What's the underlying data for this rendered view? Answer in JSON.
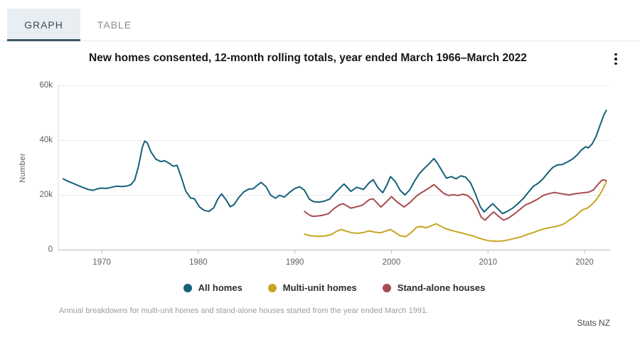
{
  "tabs": [
    {
      "label": "GRAPH",
      "active": true
    },
    {
      "label": "TABLE",
      "active": false
    }
  ],
  "header": {
    "title": "New homes consented, 12-month rolling totals, year ended March 1966–March 2022"
  },
  "icons": {
    "menu": "kebab-vertical-dots"
  },
  "footnote": "Annual breakdowns for multi-unit homes and stand-alone houses started from the year ended March 1991.",
  "attribution": "Stats NZ",
  "chart_data": {
    "type": "line",
    "title": "New homes consented, 12-month rolling totals, year ended March 1966–March 2022",
    "xlabel": "",
    "ylabel": "Number",
    "xlim": [
      1965.5,
      2022.65
    ],
    "ylim": [
      0,
      60000
    ],
    "grid": "horizontal",
    "legend_position": "bottom",
    "x_ticks": [
      {
        "value": 1970,
        "label": "1970"
      },
      {
        "value": 1980,
        "label": "1980"
      },
      {
        "value": 1990,
        "label": "1990"
      },
      {
        "value": 2000,
        "label": "2000"
      },
      {
        "value": 2010,
        "label": "2010"
      },
      {
        "value": 2020,
        "label": "2020"
      }
    ],
    "y_ticks": [
      {
        "value": 0,
        "label": "0"
      },
      {
        "value": 20000,
        "label": "20k"
      },
      {
        "value": 40000,
        "label": "40k"
      },
      {
        "value": 60000,
        "label": "60k"
      }
    ],
    "series": [
      {
        "name": "All homes",
        "color": "#15607a",
        "points": [
          [
            1966.0,
            26000
          ],
          [
            1966.5,
            25100
          ],
          [
            1967.0,
            24400
          ],
          [
            1967.5,
            23600
          ],
          [
            1968.0,
            22900
          ],
          [
            1968.6,
            22100
          ],
          [
            1969.1,
            21800
          ],
          [
            1969.6,
            22400
          ],
          [
            1970.0,
            22600
          ],
          [
            1970.5,
            22500
          ],
          [
            1971.0,
            22900
          ],
          [
            1971.5,
            23300
          ],
          [
            1972.0,
            23200
          ],
          [
            1972.5,
            23300
          ],
          [
            1973.0,
            23800
          ],
          [
            1973.4,
            25500
          ],
          [
            1973.8,
            30500
          ],
          [
            1974.2,
            37500
          ],
          [
            1974.45,
            39800
          ],
          [
            1974.7,
            39200
          ],
          [
            1975.1,
            35800
          ],
          [
            1975.6,
            33200
          ],
          [
            1976.1,
            32300
          ],
          [
            1976.5,
            32600
          ],
          [
            1977.0,
            31600
          ],
          [
            1977.4,
            30600
          ],
          [
            1977.8,
            30900
          ],
          [
            1978.2,
            27000
          ],
          [
            1978.7,
            21500
          ],
          [
            1979.2,
            19000
          ],
          [
            1979.6,
            18700
          ],
          [
            1980.1,
            15800
          ],
          [
            1980.6,
            14500
          ],
          [
            1981.1,
            14100
          ],
          [
            1981.6,
            15400
          ],
          [
            1982.0,
            18500
          ],
          [
            1982.4,
            20500
          ],
          [
            1982.9,
            18200
          ],
          [
            1983.3,
            15800
          ],
          [
            1983.7,
            16600
          ],
          [
            1984.2,
            19200
          ],
          [
            1984.7,
            21200
          ],
          [
            1985.2,
            22200
          ],
          [
            1985.7,
            22400
          ],
          [
            1986.1,
            23600
          ],
          [
            1986.5,
            24700
          ],
          [
            1987.0,
            23200
          ],
          [
            1987.5,
            20000
          ],
          [
            1988.0,
            18900
          ],
          [
            1988.4,
            20000
          ],
          [
            1988.9,
            19300
          ],
          [
            1989.5,
            21200
          ],
          [
            1990.0,
            22500
          ],
          [
            1990.5,
            23100
          ],
          [
            1991.0,
            21800
          ],
          [
            1991.5,
            18600
          ],
          [
            1991.9,
            17700
          ],
          [
            1992.5,
            17500
          ],
          [
            1993.0,
            17800
          ],
          [
            1993.6,
            18600
          ],
          [
            1994.1,
            20600
          ],
          [
            1994.7,
            22800
          ],
          [
            1995.1,
            24100
          ],
          [
            1995.8,
            21400
          ],
          [
            1996.4,
            22900
          ],
          [
            1997.1,
            22100
          ],
          [
            1997.7,
            24600
          ],
          [
            1998.1,
            25700
          ],
          [
            1998.6,
            22800
          ],
          [
            1999.1,
            20900
          ],
          [
            1999.5,
            23500
          ],
          [
            1999.9,
            26800
          ],
          [
            2000.4,
            25000
          ],
          [
            2000.9,
            21800
          ],
          [
            2001.4,
            20100
          ],
          [
            2001.9,
            22000
          ],
          [
            2002.4,
            25200
          ],
          [
            2002.9,
            27900
          ],
          [
            2003.4,
            29800
          ],
          [
            2003.9,
            31500
          ],
          [
            2004.4,
            33400
          ],
          [
            2004.8,
            31500
          ],
          [
            2005.3,
            28500
          ],
          [
            2005.7,
            26200
          ],
          [
            2006.2,
            26800
          ],
          [
            2006.7,
            26000
          ],
          [
            2007.2,
            27100
          ],
          [
            2007.7,
            26600
          ],
          [
            2008.2,
            24500
          ],
          [
            2008.7,
            20500
          ],
          [
            2009.2,
            15800
          ],
          [
            2009.6,
            13900
          ],
          [
            2010.1,
            15700
          ],
          [
            2010.5,
            16900
          ],
          [
            2011.0,
            15100
          ],
          [
            2011.5,
            13300
          ],
          [
            2012.0,
            14100
          ],
          [
            2012.6,
            15400
          ],
          [
            2013.1,
            16900
          ],
          [
            2013.7,
            19000
          ],
          [
            2014.2,
            21200
          ],
          [
            2014.7,
            23300
          ],
          [
            2015.2,
            24400
          ],
          [
            2015.7,
            26000
          ],
          [
            2016.2,
            28200
          ],
          [
            2016.7,
            30100
          ],
          [
            2017.2,
            31100
          ],
          [
            2017.7,
            31200
          ],
          [
            2018.2,
            32100
          ],
          [
            2018.7,
            33100
          ],
          [
            2019.2,
            34600
          ],
          [
            2019.7,
            36600
          ],
          [
            2020.1,
            37700
          ],
          [
            2020.4,
            37300
          ],
          [
            2020.8,
            38800
          ],
          [
            2021.2,
            41500
          ],
          [
            2021.6,
            45500
          ],
          [
            2022.0,
            49300
          ],
          [
            2022.25,
            51000
          ]
        ]
      },
      {
        "name": "Multi-unit homes",
        "color": "#c8a521",
        "points": [
          [
            1991.0,
            5800
          ],
          [
            1991.5,
            5300
          ],
          [
            1992.0,
            5100
          ],
          [
            1992.6,
            5000
          ],
          [
            1993.2,
            5200
          ],
          [
            1993.8,
            5700
          ],
          [
            1994.3,
            6800
          ],
          [
            1994.8,
            7500
          ],
          [
            1995.3,
            6900
          ],
          [
            1995.9,
            6300
          ],
          [
            1996.5,
            6100
          ],
          [
            1997.1,
            6400
          ],
          [
            1997.7,
            7000
          ],
          [
            1998.3,
            6500
          ],
          [
            1998.9,
            6300
          ],
          [
            1999.4,
            6900
          ],
          [
            1999.9,
            7500
          ],
          [
            2000.4,
            6400
          ],
          [
            2000.9,
            5200
          ],
          [
            2001.5,
            4900
          ],
          [
            2002.0,
            6200
          ],
          [
            2002.6,
            8300
          ],
          [
            2003.1,
            8600
          ],
          [
            2003.6,
            8100
          ],
          [
            2004.1,
            8800
          ],
          [
            2004.6,
            9600
          ],
          [
            2005.1,
            8700
          ],
          [
            2005.6,
            7800
          ],
          [
            2006.1,
            7300
          ],
          [
            2006.7,
            6700
          ],
          [
            2007.3,
            6200
          ],
          [
            2007.9,
            5600
          ],
          [
            2008.5,
            5100
          ],
          [
            2009.1,
            4300
          ],
          [
            2009.7,
            3700
          ],
          [
            2010.3,
            3300
          ],
          [
            2010.9,
            3200
          ],
          [
            2011.5,
            3300
          ],
          [
            2012.1,
            3700
          ],
          [
            2012.7,
            4200
          ],
          [
            2013.4,
            4800
          ],
          [
            2014.0,
            5600
          ],
          [
            2014.7,
            6400
          ],
          [
            2015.3,
            7200
          ],
          [
            2016.0,
            7900
          ],
          [
            2016.7,
            8400
          ],
          [
            2017.3,
            8800
          ],
          [
            2017.9,
            9600
          ],
          [
            2018.4,
            10900
          ],
          [
            2019.1,
            12500
          ],
          [
            2019.6,
            14200
          ],
          [
            2020.0,
            15000
          ],
          [
            2020.3,
            15300
          ],
          [
            2020.7,
            16400
          ],
          [
            2021.1,
            17900
          ],
          [
            2021.5,
            19800
          ],
          [
            2021.9,
            22200
          ],
          [
            2022.25,
            24800
          ]
        ]
      },
      {
        "name": "Stand-alone houses",
        "color": "#a84c50",
        "points": [
          [
            1991.0,
            14100
          ],
          [
            1991.4,
            13000
          ],
          [
            1991.8,
            12300
          ],
          [
            1992.3,
            12400
          ],
          [
            1992.9,
            12700
          ],
          [
            1993.5,
            13300
          ],
          [
            1994.0,
            15000
          ],
          [
            1994.6,
            16500
          ],
          [
            1995.0,
            16900
          ],
          [
            1995.8,
            15300
          ],
          [
            1996.4,
            15800
          ],
          [
            1997.0,
            16400
          ],
          [
            1997.7,
            18400
          ],
          [
            1998.1,
            18700
          ],
          [
            1998.9,
            15700
          ],
          [
            1999.4,
            17300
          ],
          [
            2000.0,
            19500
          ],
          [
            2000.6,
            17500
          ],
          [
            2001.3,
            15700
          ],
          [
            2001.9,
            17300
          ],
          [
            2002.5,
            19400
          ],
          [
            2002.9,
            20500
          ],
          [
            2003.5,
            21800
          ],
          [
            2004.0,
            22900
          ],
          [
            2004.4,
            23900
          ],
          [
            2004.9,
            22300
          ],
          [
            2005.4,
            20700
          ],
          [
            2005.9,
            19900
          ],
          [
            2006.4,
            20200
          ],
          [
            2006.9,
            19900
          ],
          [
            2007.4,
            20400
          ],
          [
            2007.9,
            19900
          ],
          [
            2008.4,
            18300
          ],
          [
            2008.9,
            15200
          ],
          [
            2009.3,
            12000
          ],
          [
            2009.7,
            10900
          ],
          [
            2010.2,
            12700
          ],
          [
            2010.6,
            13900
          ],
          [
            2011.1,
            12300
          ],
          [
            2011.6,
            10900
          ],
          [
            2012.1,
            11600
          ],
          [
            2012.7,
            13100
          ],
          [
            2013.3,
            14800
          ],
          [
            2013.9,
            16500
          ],
          [
            2014.5,
            17400
          ],
          [
            2015.1,
            18500
          ],
          [
            2015.7,
            19900
          ],
          [
            2016.3,
            20600
          ],
          [
            2016.9,
            21000
          ],
          [
            2017.4,
            20700
          ],
          [
            2017.9,
            20400
          ],
          [
            2018.4,
            20100
          ],
          [
            2018.9,
            20500
          ],
          [
            2019.4,
            20700
          ],
          [
            2019.9,
            20900
          ],
          [
            2020.4,
            21100
          ],
          [
            2020.9,
            21900
          ],
          [
            2021.4,
            24000
          ],
          [
            2021.8,
            25500
          ],
          [
            2022.0,
            25600
          ],
          [
            2022.25,
            25300
          ]
        ]
      }
    ]
  }
}
